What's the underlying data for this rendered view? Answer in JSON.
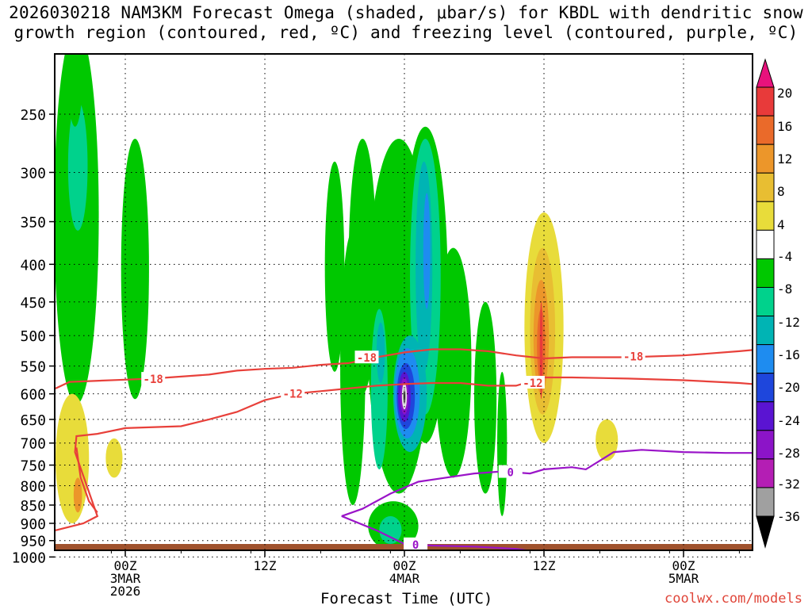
{
  "title_line1": "2026030218 NAM3KM Forecast Omega (shaded, μbar/s) for KBDL with dendritic snow",
  "title_line2": "growth region (contoured, red, ºC) and freezing level (contoured, purple, ºC)",
  "xlabel": "Forecast Time (UTC)",
  "credit": "coolwx.com/models",
  "chart_data": {
    "type": "heatmap",
    "title": "2026030218 NAM3KM Forecast Omega (shaded, μbar/s) for KBDL with dendritic snow growth region (contoured, red, ºC) and freezing level (contoured, purple, ºC)",
    "xlabel": "Forecast Time (UTC)",
    "ylabel": "",
    "x_range_hours": [
      -6,
      45
    ],
    "y_ticks": [
      250,
      300,
      350,
      400,
      450,
      500,
      550,
      600,
      650,
      700,
      750,
      800,
      850,
      900,
      950,
      1000
    ],
    "x_ticks": [
      {
        "hour": 0,
        "lines": [
          "00Z",
          "3MAR",
          "2026"
        ]
      },
      {
        "hour": 10,
        "lines": [
          "12Z"
        ]
      },
      {
        "hour": 20,
        "lines": [
          "00Z",
          "4MAR"
        ]
      },
      {
        "hour": 30,
        "lines": [
          "12Z"
        ]
      },
      {
        "hour": 40,
        "lines": [
          "00Z",
          "5MAR"
        ]
      }
    ],
    "colorbar": {
      "labels": [
        "20",
        "16",
        "12",
        "8",
        "4",
        "-4",
        "-8",
        "-12",
        "-16",
        "-20",
        "-24",
        "-28",
        "-32",
        "-36"
      ],
      "colors": [
        "#e8127c",
        "#e83a3a",
        "#ea6a2a",
        "#ec962a",
        "#e8be32",
        "#e8dc3a",
        "#ffffff",
        "#00c800",
        "#00d28c",
        "#00b4b4",
        "#1e8cf0",
        "#1e46dc",
        "#5a14d2",
        "#8c14c8",
        "#b41eb4",
        "#a0a0a0",
        "#000000"
      ]
    },
    "contours": [
      {
        "name": "-18",
        "color": "#e8403a",
        "labels": [
          "-18",
          "-18",
          "-18"
        ]
      },
      {
        "name": "-12",
        "color": "#e8403a",
        "labels": [
          "-12",
          "-12"
        ]
      },
      {
        "name": "0",
        "color": "#9a14c8",
        "labels": [
          "0",
          "0"
        ]
      }
    ],
    "omega_features": [
      {
        "hour": -3.5,
        "p_top": 190,
        "p_bot": 620,
        "min_value": -12
      },
      {
        "hour": 0.5,
        "p_top": 270,
        "p_bot": 610,
        "min_value": -8
      },
      {
        "hour": 20,
        "p_top": 270,
        "p_bot": 850,
        "min_value": -36
      },
      {
        "hour": 30,
        "p_top": 340,
        "p_bot": 700,
        "max_value": 16
      },
      {
        "hour": -3.5,
        "p_top": 560,
        "p_bot": 900,
        "max_value": 8
      }
    ]
  }
}
